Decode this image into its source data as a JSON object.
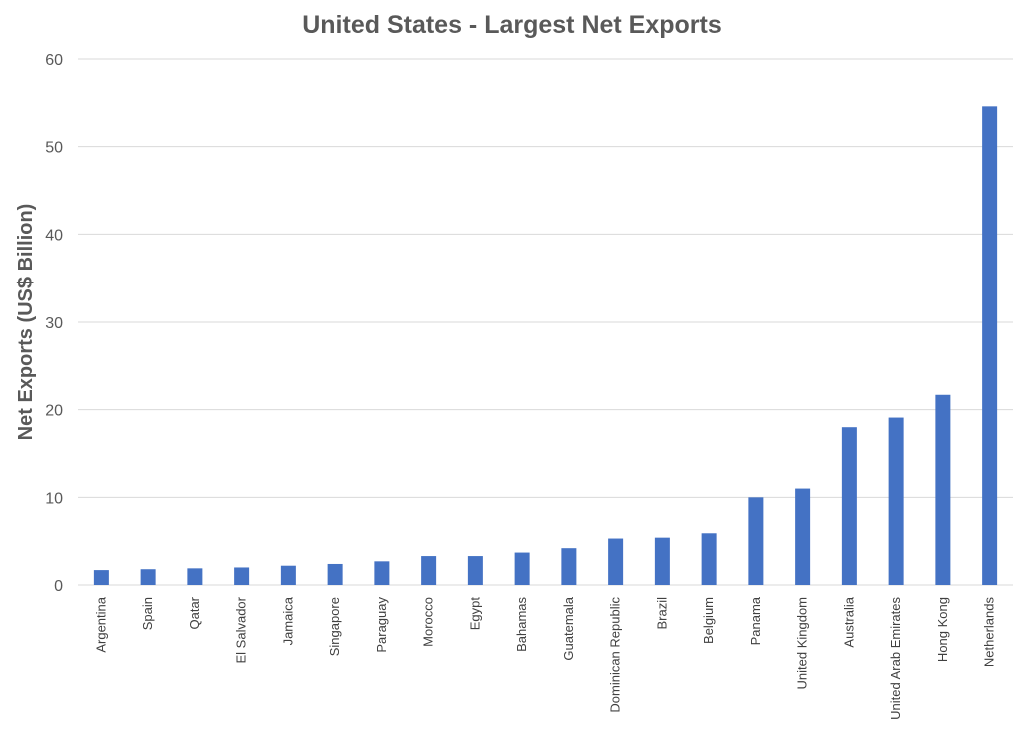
{
  "chart_data": {
    "type": "bar",
    "title": "United States  - Largest Net Exports",
    "xlabel": "",
    "ylabel": "Net Exports (US$ Billion)",
    "ylim": [
      0,
      60
    ],
    "yticks": [
      0,
      10,
      20,
      30,
      40,
      50,
      60
    ],
    "grid": true,
    "categories": [
      "Argentina",
      "Spain",
      "Qatar",
      "El Salvador",
      "Jamaica",
      "Singapore",
      "Paraguay",
      "Morocco",
      "Egypt",
      "Bahamas",
      "Guatemala",
      "Dominican Republic",
      "Brazil",
      "Belgium",
      "Panama",
      "United Kingdom",
      "Australia",
      "United Arab Emirates",
      "Hong Kong",
      "Netherlands"
    ],
    "values": [
      1.7,
      1.8,
      1.9,
      2.0,
      2.2,
      2.4,
      2.7,
      3.3,
      3.3,
      3.7,
      4.2,
      5.3,
      5.4,
      5.9,
      10.0,
      11.0,
      18.0,
      19.1,
      21.7,
      54.6
    ],
    "bar_color": "#4472c4"
  }
}
